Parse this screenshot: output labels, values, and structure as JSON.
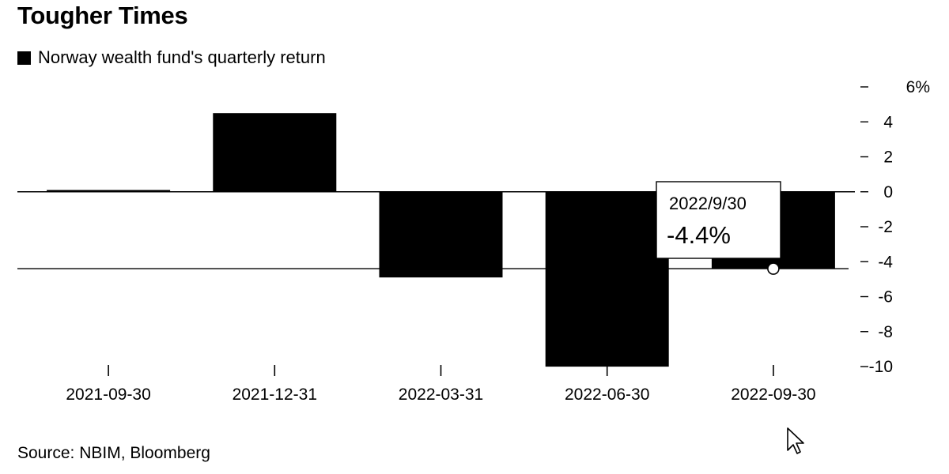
{
  "title": "Tougher Times",
  "legend": {
    "label": "Norway wealth fund's quarterly return",
    "color": "#000000"
  },
  "source": "Source: NBIM, Bloomberg",
  "tooltip": {
    "date": "2022/9/30",
    "value": "-4.4%"
  },
  "chart_data": {
    "type": "bar",
    "title": "Tougher Times",
    "xlabel": "",
    "ylabel": "",
    "categories": [
      "2021-09-30",
      "2021-12-31",
      "2022-03-31",
      "2022-06-30",
      "2022-09-30"
    ],
    "series": [
      {
        "name": "Norway wealth fund's quarterly return",
        "values": [
          0.1,
          4.5,
          -4.9,
          -10.0,
          -4.4
        ],
        "color": "#000000"
      }
    ],
    "ylim": [
      -10,
      6
    ],
    "yticks": [
      6,
      4,
      2,
      0,
      -2,
      -4,
      -6,
      -8,
      -10
    ],
    "ytick_labels": [
      "6%",
      "4",
      "2",
      "0",
      "-2",
      "-4",
      "-6",
      "-8",
      "-10"
    ],
    "reference_line": -4.4,
    "grid": false,
    "y_axis_position": "right",
    "legend_position": "top-left"
  }
}
